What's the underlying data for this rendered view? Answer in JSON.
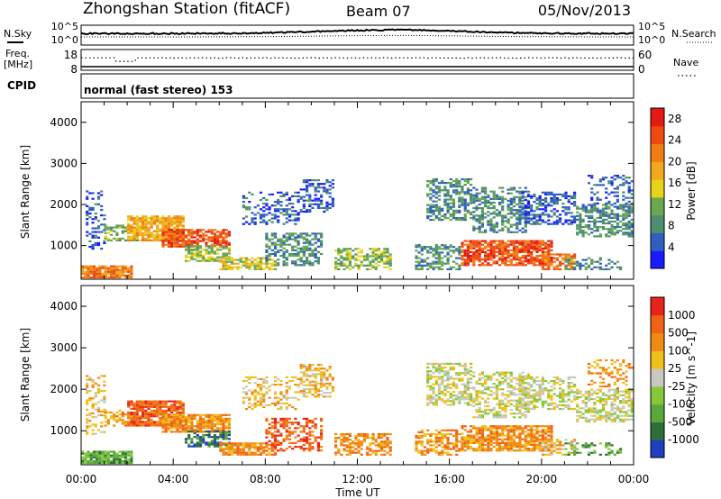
{
  "header": {
    "title": "Zhongshan Station (fitACF)",
    "beam": "Beam 07",
    "date": "05/Nov/2013"
  },
  "strip_panels": {
    "noise": {
      "left_label": "N.Sky",
      "right_label": "N.Search",
      "left_ticks": [
        "10^5",
        "10^0"
      ],
      "right_ticks": [
        "10^5",
        "10^0"
      ]
    },
    "freq": {
      "left_label_1": "Freq.",
      "left_label_2": "[MHz]",
      "right_label": "Nave",
      "left_ticks": [
        "18",
        "8"
      ],
      "right_ticks": [
        "60",
        "0"
      ]
    },
    "cpid": {
      "label": "CPID",
      "text": "normal (fast stereo) 153"
    }
  },
  "chart_data": [
    {
      "type": "heatmap",
      "name": "power",
      "ylabel": "Slant Range [km]",
      "xlabel": "",
      "ylim": [
        180,
        4500
      ],
      "y_ticks": [
        "1000",
        "2000",
        "3000",
        "4000"
      ],
      "y_tick_values": [
        1000,
        2000,
        3000,
        4000
      ],
      "colorbar": {
        "label": "Power [dB]",
        "tick_labels": [
          "4",
          "8",
          "12",
          "16",
          "20",
          "24",
          "28"
        ],
        "tick_values": [
          4,
          8,
          12,
          16,
          20,
          24,
          28
        ],
        "range": [
          0,
          30
        ],
        "colors": [
          "#1a1aff",
          "#2f5fbf",
          "#4f8f6f",
          "#6aa84f",
          "#e8d21a",
          "#f2a81c",
          "#f07d14",
          "#ef4a12",
          "#e31b12"
        ]
      }
    },
    {
      "type": "heatmap",
      "name": "velocity",
      "ylabel": "Slant Range [km]",
      "xlabel": "Time UT",
      "ylim": [
        180,
        4500
      ],
      "y_ticks": [
        "1000",
        "2000",
        "3000",
        "4000"
      ],
      "y_tick_values": [
        1000,
        2000,
        3000,
        4000
      ],
      "x_ticks": [
        "00:00",
        "04:00",
        "08:00",
        "12:00",
        "16:00",
        "20:00",
        "00:00"
      ],
      "x_tick_hours": [
        0,
        4,
        8,
        12,
        16,
        20,
        24
      ],
      "xlim_hours": [
        0,
        24
      ],
      "colorbar": {
        "label": "Velocity [m s^-1]",
        "tick_labels": [
          "1000",
          "500",
          "100",
          "25",
          "-25",
          "-100",
          "-500",
          "-1000"
        ],
        "colors": [
          "#1f3fbf",
          "#2e6e3a",
          "#5aa83c",
          "#84c83a",
          "#c8c8c0",
          "#f0c01a",
          "#f08a14",
          "#f06214",
          "#e8241a"
        ]
      }
    }
  ]
}
